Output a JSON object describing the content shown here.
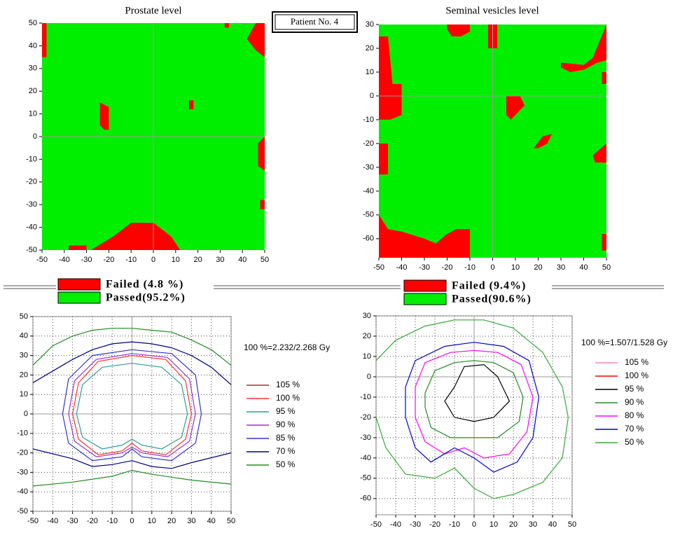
{
  "header": {
    "label": "Patient No. 4"
  },
  "chart_data": [
    {
      "type": "gamma_map",
      "title": "Prostate level",
      "xlim": [
        -50,
        50
      ],
      "ylim": [
        -50,
        50
      ],
      "xticks": [
        -50,
        -40,
        -30,
        -20,
        -10,
        0,
        10,
        20,
        30,
        40,
        50
      ],
      "yticks": [
        -50,
        -40,
        -30,
        -20,
        -10,
        0,
        10,
        20,
        30,
        40,
        50
      ],
      "series": [
        {
          "name": "Failed (4.8 %)",
          "color": "#ff0000"
        },
        {
          "name": "Passed(95.2%)",
          "color": "#00ee00"
        }
      ],
      "failed_regions": [
        {
          "x": [
            -50,
            -48,
            -48,
            -50
          ],
          "y": [
            50,
            50,
            35,
            35
          ]
        },
        {
          "x": [
            32,
            34,
            34,
            32
          ],
          "y": [
            50,
            50,
            48,
            48
          ]
        },
        {
          "x": [
            42,
            46,
            50,
            50,
            46
          ],
          "y": [
            43,
            50,
            50,
            35,
            38
          ]
        },
        {
          "x": [
            -24,
            -20,
            -20,
            -22,
            -24
          ],
          "y": [
            15,
            13,
            3,
            3,
            5
          ]
        },
        {
          "x": [
            16,
            18,
            18,
            16
          ],
          "y": [
            16,
            16,
            12,
            12
          ]
        },
        {
          "x": [
            47,
            50,
            50,
            47
          ],
          "y": [
            -3,
            0,
            -15,
            -13
          ]
        },
        {
          "x": [
            48,
            50,
            50,
            48
          ],
          "y": [
            -28,
            -28,
            -32,
            -32
          ]
        },
        {
          "x": [
            -28,
            -18,
            -10,
            0,
            8,
            12
          ],
          "y": [
            -50,
            -44,
            -38,
            -38,
            -44,
            -50
          ]
        },
        {
          "x": [
            -38,
            -30,
            -30,
            -38
          ],
          "y": [
            -48,
            -48,
            -50,
            -50
          ]
        }
      ]
    },
    {
      "type": "gamma_map",
      "title": "Seminal vesicles level",
      "xlim": [
        -50,
        50
      ],
      "ylim": [
        -68,
        30
      ],
      "xticks": [
        -50,
        -40,
        -30,
        -20,
        -10,
        0,
        10,
        20,
        30,
        40,
        50
      ],
      "yticks": [
        -60,
        -50,
        -40,
        -30,
        -20,
        -10,
        0,
        10,
        20,
        30
      ],
      "series": [
        {
          "name": "Failed (9.4%)",
          "color": "#ff0000"
        },
        {
          "name": "Passed(90.6%)",
          "color": "#00ee00"
        }
      ],
      "failed_regions": [
        {
          "x": [
            -20,
            -10,
            -10,
            -14,
            -18,
            -20
          ],
          "y": [
            30,
            30,
            27,
            25,
            25,
            28
          ]
        },
        {
          "x": [
            -2,
            2,
            2,
            -2
          ],
          "y": [
            30,
            30,
            20,
            20
          ]
        },
        {
          "x": [
            30,
            40,
            44,
            50,
            50,
            46,
            40,
            34,
            30
          ],
          "y": [
            14,
            13,
            16,
            30,
            15,
            14,
            11,
            10,
            12
          ]
        },
        {
          "x": [
            -50,
            -46,
            -44,
            -40,
            -40,
            -45,
            -50
          ],
          "y": [
            25,
            25,
            5,
            5,
            -8,
            -10,
            -10
          ]
        },
        {
          "x": [
            -50,
            -46,
            -46,
            -50
          ],
          "y": [
            -20,
            -20,
            -33,
            -33
          ]
        },
        {
          "x": [
            6,
            12,
            14,
            8,
            6
          ],
          "y": [
            0,
            0,
            -4,
            -10,
            -8
          ]
        },
        {
          "x": [
            18,
            22,
            26,
            24,
            20
          ],
          "y": [
            -22,
            -17,
            -16,
            -20,
            -22
          ]
        },
        {
          "x": [
            44,
            50,
            50,
            45
          ],
          "y": [
            -25,
            -20,
            -28,
            -28
          ]
        },
        {
          "x": [
            48,
            50,
            50,
            48
          ],
          "y": [
            10,
            10,
            5,
            5
          ]
        },
        {
          "x": [
            -50,
            -46,
            -40,
            -30,
            -25,
            -20,
            -16,
            -10,
            -10,
            -50
          ],
          "y": [
            -50,
            -56,
            -57,
            -60,
            -62,
            -58,
            -56,
            -56,
            -68,
            -68
          ]
        },
        {
          "x": [
            48,
            50,
            50,
            48
          ],
          "y": [
            -58,
            -58,
            -65,
            -65
          ]
        }
      ]
    },
    {
      "type": "contour",
      "annotation": "100 %=2.232/2.268 Gy",
      "xlim": [
        -50,
        50
      ],
      "ylim": [
        -50,
        50
      ],
      "xticks": [
        -50,
        -40,
        -30,
        -20,
        -10,
        0,
        10,
        20,
        30,
        40,
        50
      ],
      "yticks": [
        -50,
        -40,
        -30,
        -20,
        -10,
        0,
        10,
        20,
        30,
        40,
        50
      ],
      "grid": true,
      "series": [
        {
          "name": "105 %",
          "color": "#993333",
          "x": [],
          "y": []
        },
        {
          "name": "100 %",
          "color": "#ff3333",
          "x": [
            -30,
            -27,
            -17,
            0,
            17,
            27,
            30,
            27,
            17,
            5,
            0,
            -5,
            -17,
            -27,
            -30
          ],
          "y": [
            0,
            16,
            27,
            30,
            28,
            17,
            0,
            -13,
            -21,
            -19,
            -15,
            -19,
            -21,
            -13,
            0
          ]
        },
        {
          "name": "95 %",
          "color": "#339999",
          "x": [
            -28,
            -25,
            -15,
            0,
            15,
            25,
            28,
            25,
            15,
            5,
            0,
            -5,
            -15,
            -25,
            -28
          ],
          "y": [
            0,
            15,
            24,
            26,
            24,
            15,
            0,
            -12,
            -18,
            -16,
            -13,
            -16,
            -18,
            -12,
            0
          ]
        },
        {
          "name": "90 %",
          "color": "#9933cc",
          "x": [
            -32,
            -29,
            -18,
            0,
            18,
            29,
            32,
            29,
            18,
            5,
            0,
            -5,
            -18,
            -29,
            -32
          ],
          "y": [
            0,
            17,
            28,
            31,
            29,
            18,
            0,
            -14,
            -22,
            -20,
            -17,
            -20,
            -22,
            -14,
            0
          ]
        },
        {
          "name": "85 %",
          "color": "#3333cc",
          "x": [
            -35,
            -32,
            -20,
            0,
            20,
            32,
            35,
            32,
            20,
            5,
            0,
            -5,
            -20,
            -32,
            -35
          ],
          "y": [
            0,
            18,
            30,
            33,
            31,
            20,
            0,
            -15,
            -24,
            -22,
            -18,
            -22,
            -24,
            -15,
            0
          ]
        },
        {
          "name": "70 %",
          "color": "#000080",
          "x": [
            -50,
            -40,
            -30,
            -20,
            -10,
            0,
            10,
            20,
            30,
            40,
            50,
            null,
            -50,
            -30,
            -20,
            -10,
            0,
            10,
            20,
            30,
            50
          ],
          "y": [
            16,
            22,
            28,
            33,
            36,
            37,
            36,
            34,
            30,
            24,
            15,
            null,
            -18,
            -23,
            -27,
            -26,
            -24,
            -27,
            -28,
            -25,
            -20
          ]
        },
        {
          "name": "50 %",
          "color": "#228b22",
          "x": [
            -50,
            -40,
            -30,
            -20,
            -10,
            0,
            10,
            20,
            30,
            40,
            50,
            null,
            -50,
            -30,
            -10,
            0,
            10,
            30,
            50
          ],
          "y": [
            25,
            35,
            40,
            43,
            44,
            44,
            43,
            42,
            38,
            33,
            25,
            null,
            -37,
            -35,
            -32,
            -29,
            -31,
            -34,
            -36
          ]
        }
      ]
    },
    {
      "type": "contour",
      "annotation": "100 %=1.507/1.528 Gy",
      "xlim": [
        -50,
        50
      ],
      "ylim": [
        -68,
        30
      ],
      "xticks": [
        -50,
        -40,
        -30,
        -20,
        -10,
        0,
        10,
        20,
        30,
        40,
        50
      ],
      "yticks": [
        -60,
        -50,
        -40,
        -30,
        -20,
        -10,
        0,
        10,
        20,
        30
      ],
      "grid": true,
      "series": [
        {
          "name": "105 %",
          "color": "#ff88aa",
          "x": [],
          "y": []
        },
        {
          "name": "100 %",
          "color": "#ff0000",
          "x": [],
          "y": []
        },
        {
          "name": "95 %",
          "color": "#000000",
          "x": [
            -10,
            -5,
            5,
            12,
            18,
            10,
            0,
            -10,
            -15,
            -10
          ],
          "y": [
            -5,
            5,
            6,
            0,
            -12,
            -20,
            -22,
            -20,
            -12,
            -5
          ]
        },
        {
          "name": "90 %",
          "color": "#228b22",
          "x": [
            -25,
            -20,
            -10,
            0,
            10,
            20,
            25,
            23,
            12,
            0,
            -12,
            -22,
            -25,
            -25
          ],
          "y": [
            -8,
            3,
            7,
            8,
            7,
            2,
            -10,
            -22,
            -30,
            -30,
            -30,
            -25,
            -15,
            -8
          ]
        },
        {
          "name": "80 %",
          "color": "#ff00ff",
          "x": [
            -30,
            -25,
            -12,
            0,
            12,
            24,
            30,
            27,
            18,
            5,
            -5,
            -15,
            -25,
            -30,
            -30
          ],
          "y": [
            -5,
            7,
            12,
            13,
            12,
            6,
            -10,
            -27,
            -38,
            -40,
            -35,
            -38,
            -32,
            -20,
            -5
          ]
        },
        {
          "name": "70 %",
          "color": "#0000cc",
          "x": [
            -35,
            -30,
            -15,
            0,
            15,
            28,
            33,
            30,
            22,
            10,
            0,
            -10,
            -22,
            -30,
            -35,
            -35
          ],
          "y": [
            -5,
            8,
            15,
            17,
            15,
            8,
            -10,
            -30,
            -42,
            -47,
            -40,
            -35,
            -42,
            -35,
            -20,
            -5
          ]
        },
        {
          "name": "50 %",
          "color": "#33aa33",
          "x": [
            -50,
            -40,
            -25,
            -10,
            5,
            20,
            35,
            45,
            48,
            45,
            35,
            20,
            10,
            0,
            -10,
            -20,
            -35,
            -45,
            -50
          ],
          "y": [
            8,
            18,
            25,
            28,
            28,
            24,
            12,
            -5,
            -20,
            -40,
            -52,
            -58,
            -60,
            -55,
            -45,
            -50,
            -48,
            -35,
            -20
          ]
        }
      ]
    }
  ]
}
